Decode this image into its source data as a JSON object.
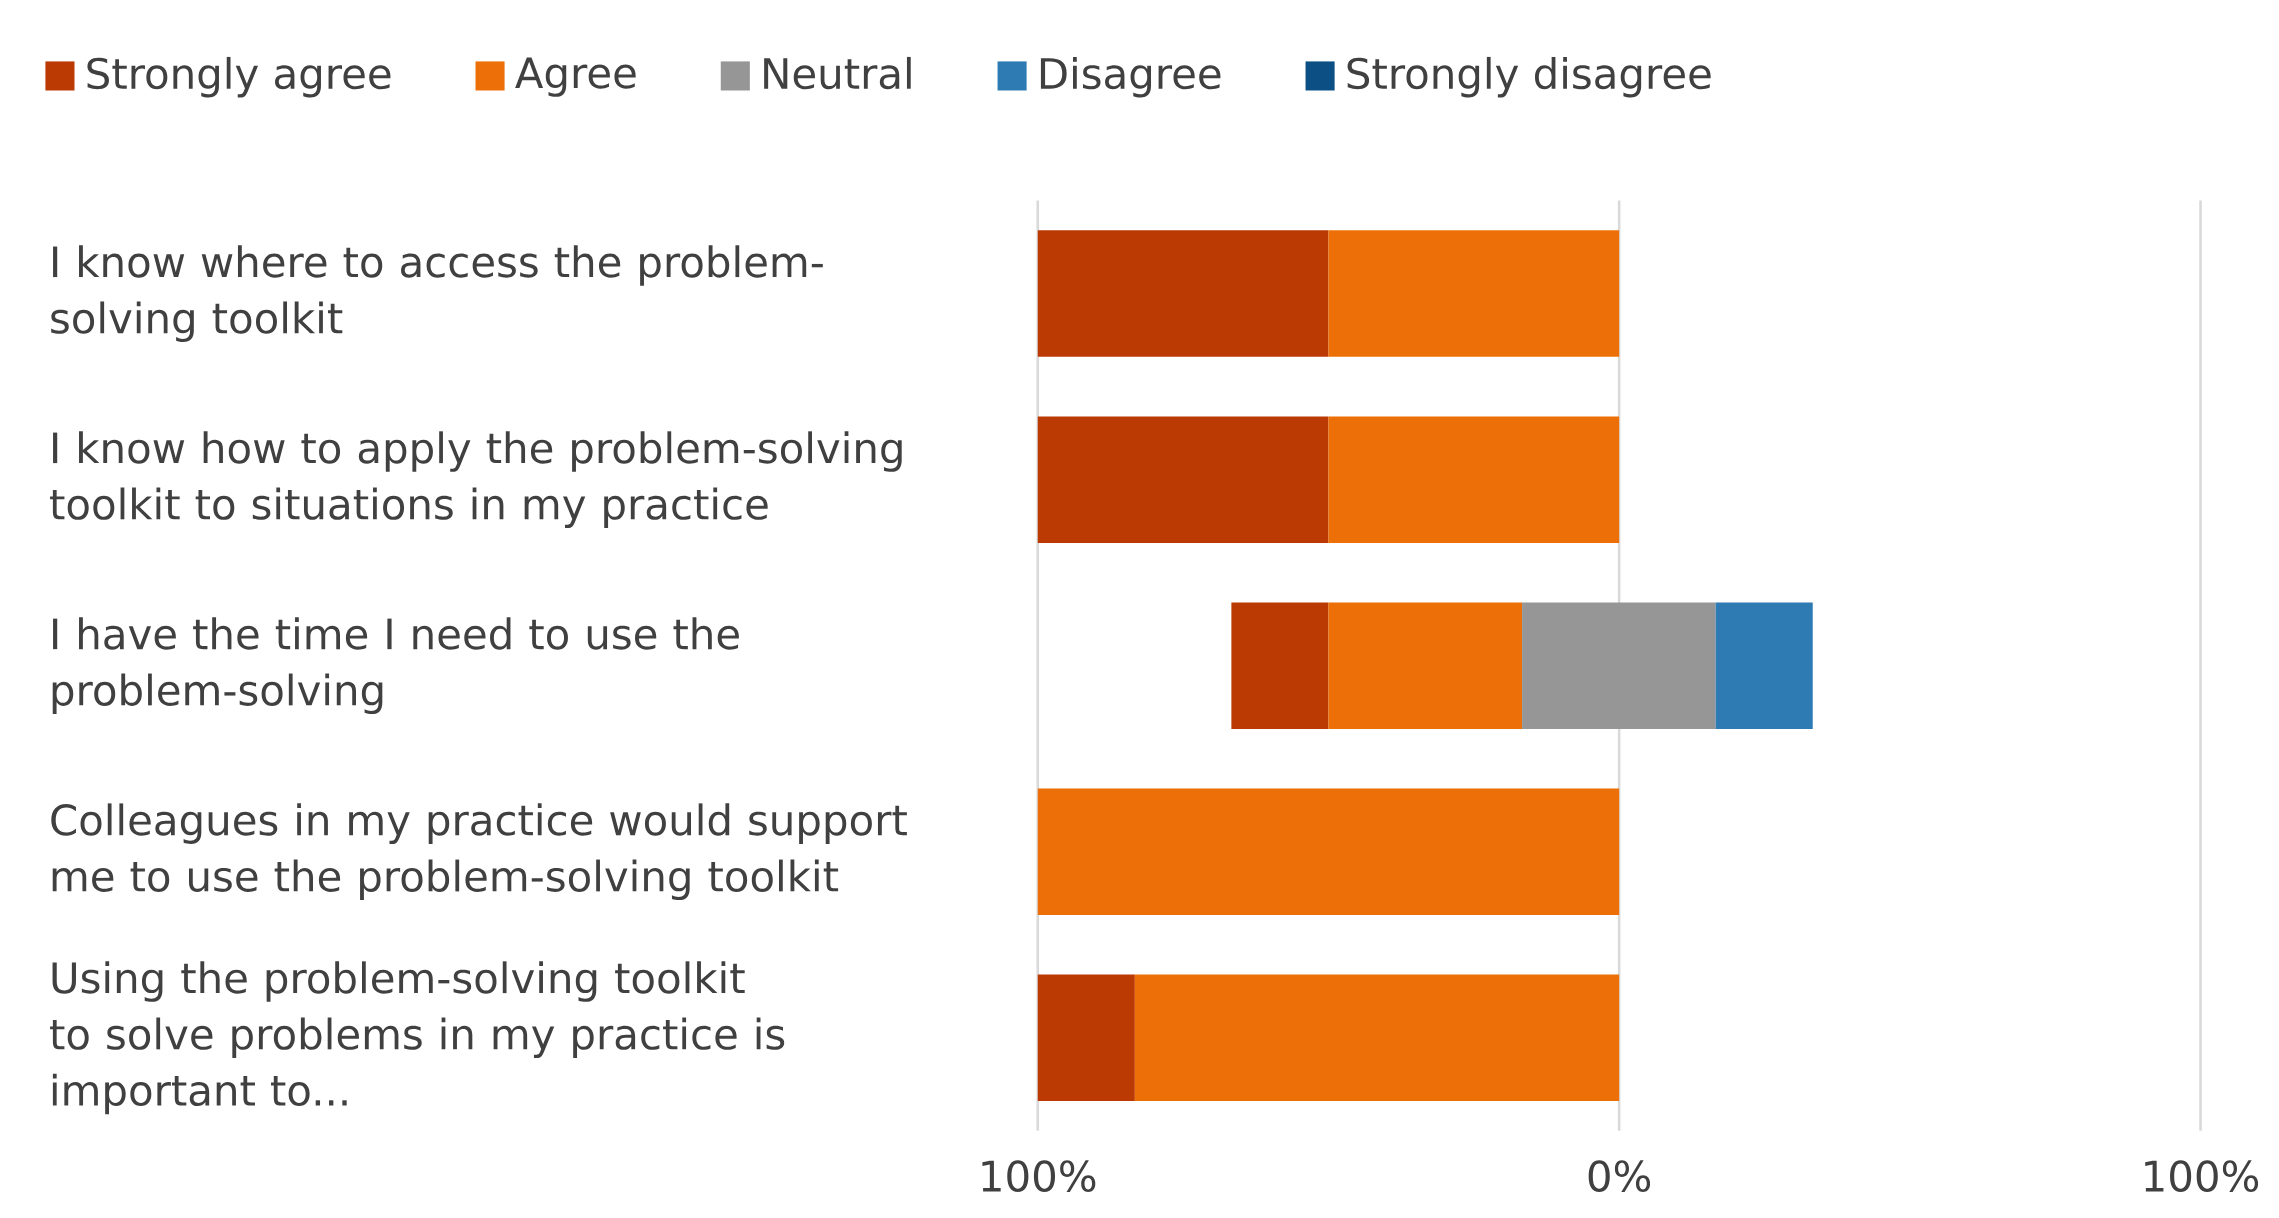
{
  "chart_data": {
    "type": "bar",
    "orientation": "horizontal",
    "categories": [
      "I know where to access the problem-solving toolkit",
      "I know how to apply the problem-solving toolkit to situations in my practice",
      "I have the time I need to use the problem-solving",
      "Colleagues in my practice would support me to use the problem-solving toolkit",
      "Using the problem-solving toolkit to solve problems in my practice is important to..."
    ],
    "series": [
      {
        "name": "Strongly agree",
        "color": "#bb3a03",
        "base": [
          -100,
          -100,
          -66.7,
          null,
          -100
        ],
        "values": [
          50,
          50,
          16.7,
          null,
          16.7
        ]
      },
      {
        "name": "Agree",
        "color": "#ec7007",
        "base": [
          -50,
          -50,
          -50,
          -100,
          -83.3
        ],
        "values": [
          50,
          50,
          33.3,
          100,
          83.3
        ]
      },
      {
        "name": "Neutral",
        "color": "#969696",
        "base": [
          null,
          null,
          -16.7,
          null,
          null
        ],
        "values": [
          null,
          null,
          33.3,
          null,
          null
        ]
      },
      {
        "name": "Disagree",
        "color": "#2e7bb4",
        "base": [
          null,
          null,
          16.6,
          null,
          null
        ],
        "values": [
          null,
          null,
          16.7,
          null,
          null
        ]
      },
      {
        "name": "Strongly disagree",
        "color": "#0b4f84",
        "values": [
          null,
          null,
          null,
          null,
          null
        ]
      }
    ],
    "xlim": [
      -100,
      100
    ],
    "xticks": [
      {
        "value": -100,
        "label": "100%"
      },
      {
        "value": 0,
        "label": "0%"
      },
      {
        "value": 100,
        "label": "100%"
      }
    ],
    "grid": "x",
    "legend": "top"
  }
}
